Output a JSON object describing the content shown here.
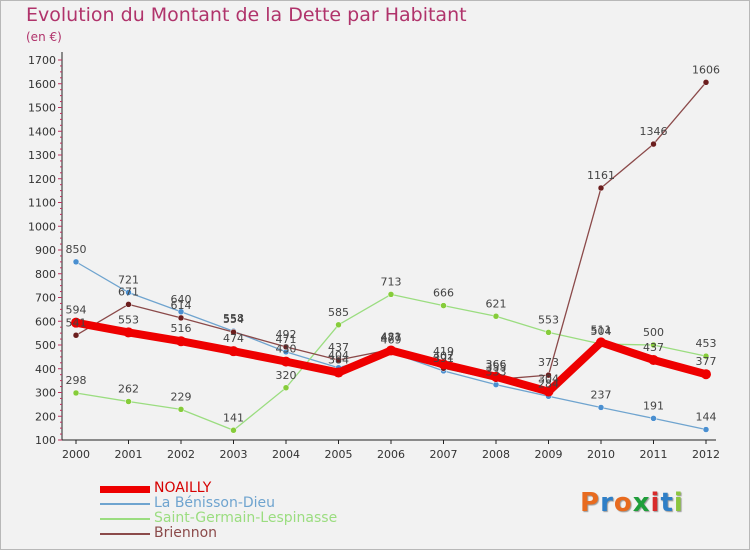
{
  "header": {
    "title": "Evolution du Montant de la Dette par Habitant",
    "subtitle": "(en €)"
  },
  "logo": {
    "text": "Proxiti",
    "colors": [
      "#e86b1f",
      "#2f7fc7",
      "#e86b1f",
      "#1f9e3a",
      "#d82b2b",
      "#2f7fc7",
      "#8cc63f"
    ]
  },
  "chart_data": {
    "type": "line",
    "x": [
      "2000",
      "2001",
      "2002",
      "2003",
      "2004",
      "2005",
      "2006",
      "2007",
      "2008",
      "2009",
      "2010",
      "2011",
      "2012"
    ],
    "ylim": [
      100,
      1700
    ],
    "yticks": [
      100,
      200,
      300,
      400,
      500,
      600,
      700,
      800,
      900,
      1000,
      1100,
      1200,
      1300,
      1400,
      1500,
      1600,
      1700
    ],
    "grid": false,
    "legend_position": "bottom-left",
    "series": [
      {
        "name": "NOAILLY",
        "color": "#ee0000",
        "dot": "#ee0000",
        "values": [
          594,
          553,
          516,
          474,
          430,
          384,
          477,
          419,
          366,
          304,
          511,
          437,
          377
        ]
      },
      {
        "name": "La Bénisson-Dieu",
        "color": "#6fa4cf",
        "dot": "#4a8fd0",
        "values": [
          850,
          721,
          640,
          558,
          471,
          404,
          469,
          391,
          333,
          284,
          237,
          191,
          144
        ]
      },
      {
        "name": "Saint-Germain-Lespinasse",
        "color": "#9bdd80",
        "dot": "#86cc3a",
        "values": [
          298,
          262,
          229,
          141,
          320,
          585,
          713,
          666,
          621,
          553,
          504,
          500,
          453
        ]
      },
      {
        "name": "Briennon",
        "color": "#8b4a4a",
        "dot": "#6b1e1e",
        "values": [
          541,
          671,
          614,
          554,
          492,
          437,
          481,
          402,
          355,
          373,
          1161,
          1346,
          1606
        ]
      }
    ]
  }
}
